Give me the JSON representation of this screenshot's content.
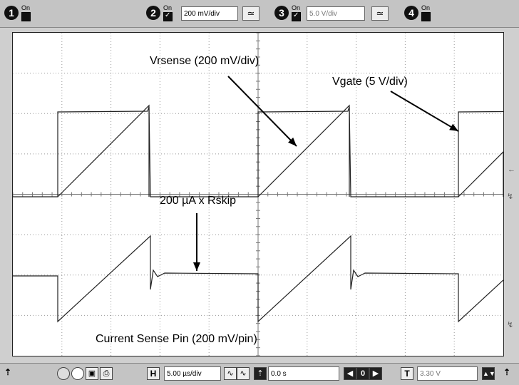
{
  "top": {
    "ch1": {
      "number": "1",
      "state": "On"
    },
    "ch2": {
      "number": "2",
      "state": "On",
      "scale": "200 mV/div"
    },
    "ch3": {
      "number": "3",
      "state": "On",
      "scale": "5.0 V/div"
    },
    "ch4": {
      "number": "4",
      "state": "On"
    }
  },
  "annotations": {
    "vrsense": "Vrsense (200 mV/div)",
    "vgate": "Vgate (5 V/div)",
    "rskip": "200 µA x Rskip",
    "current": "Current Sense Pin (200 mV/pin)"
  },
  "bottom": {
    "h_label": "H",
    "timebase": "5.00 µs/div",
    "delay": "0.0 s",
    "zero": "0",
    "t_label": "T",
    "trigger_level": "3.30 V"
  },
  "colors": {
    "trace": "#222222",
    "grid": "#9a9a9a",
    "arrow": "#000000"
  },
  "icons": [
    "circle-icon",
    "circle-icon",
    "chart-icon",
    "printer-icon",
    "arrow-up-icon",
    "sine-icon",
    "left-arrow-icon",
    "right-arrow-icon"
  ]
}
